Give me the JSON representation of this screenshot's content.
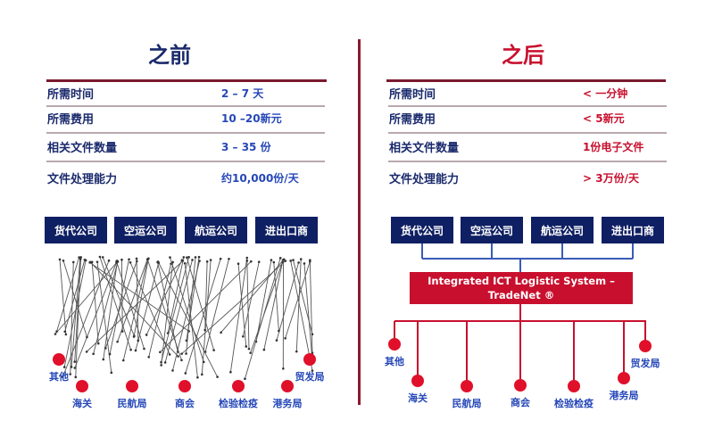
{
  "colors": {
    "navy": "#0f1f63",
    "red": "#c8102e",
    "blue_text": "#2547b8",
    "divider": "#8a1a2e"
  },
  "before": {
    "title": "之前",
    "rows": [
      {
        "label": "所需时间",
        "value": "2 – 7 天"
      },
      {
        "label": "所需费用",
        "value": "10 –20新元"
      },
      {
        "label": "相关文件数量",
        "value": "3 – 35 份"
      },
      {
        "label": "文件处理能力",
        "value": "约10,000份/天"
      }
    ],
    "parties": [
      "货代公司",
      "空运公司",
      "航运公司",
      "进出口商"
    ],
    "agencies": [
      "其他",
      "海关",
      "民航局",
      "商会",
      "检验检疫",
      "港务局",
      "贸发局"
    ]
  },
  "after": {
    "title": "之后",
    "rows": [
      {
        "label": "所需时间",
        "value": "< 一分钟"
      },
      {
        "label": "所需费用",
        "value": "< 5新元"
      },
      {
        "label": "相关文件数量",
        "value": "1份电子文件"
      },
      {
        "label": "文件处理能力",
        "value": "> 3万份/天"
      }
    ],
    "parties": [
      "货代公司",
      "空运公司",
      "航运公司",
      "进出口商"
    ],
    "system_line1": "Integrated ICT Logistic System –",
    "system_line2": "TradeNet ®",
    "agencies": [
      "其他",
      "海关",
      "民航局",
      "商会",
      "检验检疫",
      "港务局",
      "贸发局"
    ]
  }
}
